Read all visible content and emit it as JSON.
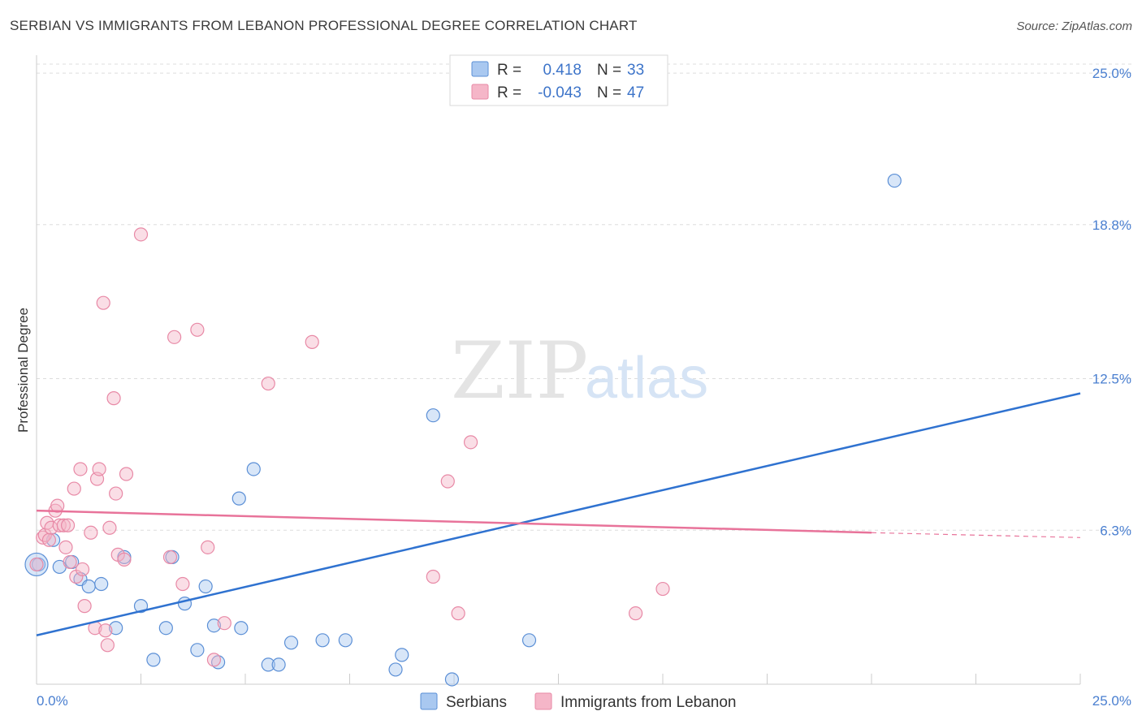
{
  "title": "SERBIAN VS IMMIGRANTS FROM LEBANON PROFESSIONAL DEGREE CORRELATION CHART",
  "source": "Source: ZipAtlas.com",
  "watermark": {
    "zip": "ZIP",
    "atlas": "atlas"
  },
  "legend_box": {
    "rows": [
      {
        "r_label": "R =",
        "r_value": "0.418",
        "n_label": "N =",
        "n_value": "33",
        "color": "#a9c8f0"
      },
      {
        "r_label": "R =",
        "r_value": "-0.043",
        "n_label": "N =",
        "n_value": "47",
        "color": "#f5b6c8"
      }
    ]
  },
  "colors": {
    "serbians_fill": "#a9c8f0",
    "serbians_stroke": "#5b8fd6",
    "serbians_line": "#2f72d0",
    "lebanon_fill": "#f5b6c8",
    "lebanon_stroke": "#e889a6",
    "lebanon_line": "#e8739a",
    "tick_text": "#4a7fd0",
    "grid": "#dddddd"
  },
  "chart_data": {
    "type": "scatter",
    "title": "SERBIAN VS IMMIGRANTS FROM LEBANON PROFESSIONAL DEGREE CORRELATION CHART",
    "xlabel": "",
    "ylabel": "Professional Degree",
    "xlim": [
      0,
      25
    ],
    "ylim": [
      0,
      25.6
    ],
    "x_tick_labels": [
      "0.0%",
      "25.0%"
    ],
    "y_ticks": [
      6.3,
      12.5,
      18.8,
      25.0
    ],
    "y_tick_labels": [
      "6.3%",
      "12.5%",
      "18.8%",
      "25.0%"
    ],
    "grid": true,
    "legend_position": "bottom",
    "series": [
      {
        "name": "Serbians",
        "R": 0.418,
        "N": 33,
        "points": [
          [
            0.05,
            4.9
          ],
          [
            0.4,
            5.9
          ],
          [
            0.55,
            4.8
          ],
          [
            0.85,
            5.0
          ],
          [
            1.05,
            4.3
          ],
          [
            1.25,
            4.0
          ],
          [
            1.55,
            4.1
          ],
          [
            2.1,
            5.2
          ],
          [
            1.9,
            2.3
          ],
          [
            2.5,
            3.2
          ],
          [
            2.8,
            1.0
          ],
          [
            3.1,
            2.3
          ],
          [
            3.25,
            5.2
          ],
          [
            3.55,
            3.3
          ],
          [
            3.85,
            1.4
          ],
          [
            4.05,
            4.0
          ],
          [
            4.25,
            2.4
          ],
          [
            4.35,
            0.9
          ],
          [
            4.85,
            7.6
          ],
          [
            4.9,
            2.3
          ],
          [
            5.2,
            8.8
          ],
          [
            5.55,
            0.8
          ],
          [
            5.8,
            0.8
          ],
          [
            6.1,
            1.7
          ],
          [
            6.85,
            1.8
          ],
          [
            7.4,
            1.8
          ],
          [
            8.6,
            0.6
          ],
          [
            8.75,
            1.2
          ],
          [
            9.5,
            11.0
          ],
          [
            9.95,
            0.2
          ],
          [
            11.8,
            1.8
          ],
          [
            20.55,
            20.6
          ],
          [
            0.0,
            4.9
          ]
        ],
        "trend": {
          "x1": 0,
          "y1": 2.0,
          "x2": 25,
          "y2": 11.9
        }
      },
      {
        "name": "Immigrants from Lebanon",
        "R": -0.043,
        "N": 47,
        "points": [
          [
            0.0,
            4.9
          ],
          [
            0.15,
            6.0
          ],
          [
            0.2,
            6.1
          ],
          [
            0.25,
            6.6
          ],
          [
            0.35,
            6.4
          ],
          [
            0.45,
            7.1
          ],
          [
            0.5,
            7.3
          ],
          [
            0.55,
            6.5
          ],
          [
            0.65,
            6.5
          ],
          [
            0.7,
            5.6
          ],
          [
            0.75,
            6.5
          ],
          [
            0.8,
            5.0
          ],
          [
            0.9,
            8.0
          ],
          [
            0.95,
            4.4
          ],
          [
            1.05,
            8.8
          ],
          [
            1.1,
            4.7
          ],
          [
            1.15,
            3.2
          ],
          [
            1.3,
            6.2
          ],
          [
            1.4,
            2.3
          ],
          [
            1.45,
            8.4
          ],
          [
            1.5,
            8.8
          ],
          [
            1.6,
            15.6
          ],
          [
            1.65,
            2.2
          ],
          [
            1.7,
            1.6
          ],
          [
            1.75,
            6.4
          ],
          [
            1.85,
            11.7
          ],
          [
            1.9,
            7.8
          ],
          [
            1.95,
            5.3
          ],
          [
            2.1,
            5.1
          ],
          [
            2.15,
            8.6
          ],
          [
            2.5,
            18.4
          ],
          [
            3.2,
            5.2
          ],
          [
            3.3,
            14.2
          ],
          [
            3.5,
            4.1
          ],
          [
            3.85,
            14.5
          ],
          [
            4.1,
            5.6
          ],
          [
            4.25,
            1.0
          ],
          [
            4.5,
            2.5
          ],
          [
            5.55,
            12.3
          ],
          [
            6.6,
            14.0
          ],
          [
            9.5,
            4.4
          ],
          [
            9.85,
            8.3
          ],
          [
            10.1,
            2.9
          ],
          [
            10.4,
            9.9
          ],
          [
            14.35,
            2.9
          ],
          [
            15.0,
            3.9
          ],
          [
            0.3,
            5.9
          ]
        ],
        "trend": {
          "x1": 0,
          "y1": 7.1,
          "x2": 20.0,
          "y2": 6.2
        },
        "trend_dashed": {
          "x1": 20.0,
          "y1": 6.2,
          "x2": 25,
          "y2": 6.0
        }
      }
    ]
  }
}
